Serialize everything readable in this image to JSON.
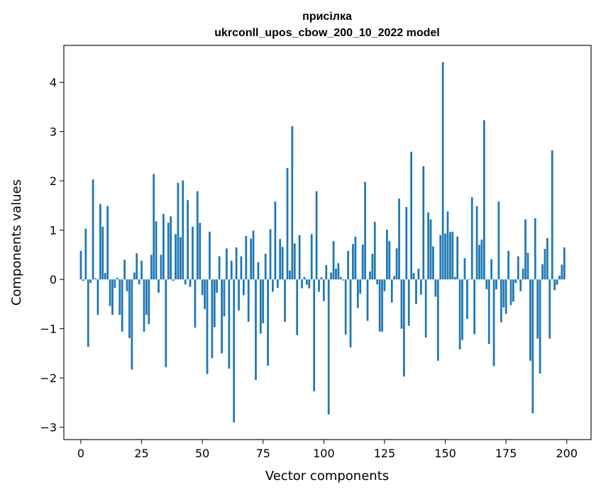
{
  "chart_data": {
    "type": "bar",
    "title": "присілка\nukrconll_upos_cbow_200_10_2022 model",
    "title_lines": [
      "присілка",
      "ukrconll_upos_cbow_200_10_2022 model"
    ],
    "xlabel": "Vector components",
    "ylabel": "Components values",
    "xlim": [
      -7,
      210
    ],
    "ylim": [
      -3.25,
      4.75
    ],
    "xticks": [
      0,
      25,
      50,
      75,
      100,
      125,
      150,
      175,
      200
    ],
    "xtick_labels": [
      "0",
      "25",
      "50",
      "75",
      "100",
      "125",
      "150",
      "175",
      "200"
    ],
    "yticks": [
      -3,
      -2,
      -1,
      0,
      1,
      2,
      3,
      4
    ],
    "ytick_labels": [
      "−3",
      "−2",
      "−1",
      "0",
      "1",
      "2",
      "3",
      "4"
    ],
    "grid": false,
    "bar_color": "#1f77b4",
    "x": [
      0,
      1,
      2,
      3,
      4,
      5,
      6,
      7,
      8,
      9,
      10,
      11,
      12,
      13,
      14,
      15,
      16,
      17,
      18,
      19,
      20,
      21,
      22,
      23,
      24,
      25,
      26,
      27,
      28,
      29,
      30,
      31,
      32,
      33,
      34,
      35,
      36,
      37,
      38,
      39,
      40,
      41,
      42,
      43,
      44,
      45,
      46,
      47,
      48,
      49,
      50,
      51,
      52,
      53,
      54,
      55,
      56,
      57,
      58,
      59,
      60,
      61,
      62,
      63,
      64,
      65,
      66,
      67,
      68,
      69,
      70,
      71,
      72,
      73,
      74,
      75,
      76,
      77,
      78,
      79,
      80,
      81,
      82,
      83,
      84,
      85,
      86,
      87,
      88,
      89,
      90,
      91,
      92,
      93,
      94,
      95,
      96,
      97,
      98,
      99,
      100,
      101,
      102,
      103,
      104,
      105,
      106,
      107,
      108,
      109,
      110,
      111,
      112,
      113,
      114,
      115,
      116,
      117,
      118,
      119,
      120,
      121,
      122,
      123,
      124,
      125,
      126,
      127,
      128,
      129,
      130,
      131,
      132,
      133,
      134,
      135,
      136,
      137,
      138,
      139,
      140,
      141,
      142,
      143,
      144,
      145,
      146,
      147,
      148,
      149,
      150,
      151,
      152,
      153,
      154,
      155,
      156,
      157,
      158,
      159,
      160,
      161,
      162,
      163,
      164,
      165,
      166,
      167,
      168,
      169,
      170,
      171,
      172,
      173,
      174,
      175,
      176,
      177,
      178,
      179,
      180,
      181,
      182,
      183,
      184,
      185,
      186,
      187,
      188,
      189,
      190,
      191,
      192,
      193,
      194,
      195,
      196,
      197,
      198,
      199
    ],
    "values": [
      0.58,
      -0.03,
      1.03,
      -1.37,
      -0.07,
      2.03,
      0.02,
      -0.72,
      1.53,
      1.07,
      0.13,
      1.49,
      -0.54,
      -0.72,
      -0.17,
      0.03,
      -0.72,
      -1.06,
      0.4,
      -0.24,
      -1.19,
      -1.83,
      0.14,
      0.53,
      -0.1,
      0.38,
      -1.06,
      -0.72,
      -0.91,
      0.5,
      2.14,
      1.18,
      -0.27,
      0.5,
      1.33,
      -1.78,
      1.15,
      1.28,
      -0.03,
      0.92,
      1.96,
      0.86,
      2.01,
      -0.1,
      1.61,
      -0.15,
      1.07,
      -0.98,
      1.79,
      1.15,
      -0.32,
      -0.6,
      -1.92,
      0.97,
      -1.6,
      -0.97,
      -0.27,
      0.47,
      -1.5,
      -0.75,
      0.63,
      -1.81,
      0.38,
      -2.9,
      0.65,
      -0.63,
      0.47,
      -0.32,
      0.88,
      -0.86,
      0.83,
      0.99,
      -2.04,
      0.35,
      -1.1,
      -0.89,
      0.52,
      -1.75,
      1.02,
      -0.25,
      1.58,
      -0.17,
      0.82,
      0.66,
      -0.86,
      2.26,
      0.18,
      3.11,
      0.73,
      -1.13,
      0.9,
      -0.18,
      0.05,
      -0.11,
      -0.18,
      0.92,
      -2.27,
      1.79,
      -0.25,
      0.04,
      -0.44,
      0.29,
      -2.74,
      0.14,
      0.78,
      0.22,
      0.33,
      0.05,
      -0.02,
      -1.12,
      0.58,
      -1.38,
      0.72,
      0.87,
      -0.58,
      -0.29,
      0.71,
      1.98,
      -0.84,
      0.16,
      0.52,
      1.17,
      -0.1,
      -1.06,
      -1.06,
      -0.24,
      1.01,
      0.78,
      -0.47,
      0.07,
      0.63,
      1.64,
      -1.0,
      -1.97,
      1.47,
      -0.94,
      2.59,
      0.13,
      -0.5,
      0.22,
      -0.31,
      2.3,
      -1.18,
      1.36,
      1.22,
      0.67,
      -0.35,
      -1.65,
      0.9,
      4.41,
      0.93,
      1.38,
      0.96,
      0.97,
      0.05,
      0.87,
      -1.42,
      -1.23,
      0.43,
      -0.8,
      0.01,
      1.67,
      -1.11,
      1.49,
      0.7,
      0.81,
      3.23,
      -0.2,
      -1.31,
      0.41,
      -1.76,
      -0.2,
      1.58,
      -0.87,
      -0.57,
      -0.7,
      0.58,
      -0.52,
      -0.45,
      -0.07,
      0.47,
      -0.24,
      0.22,
      1.22,
      0.54,
      -1.65,
      -2.72,
      1.24,
      -1.2,
      -1.91,
      0.31,
      0.62,
      0.84,
      -1.2,
      2.62,
      -0.22,
      -0.11,
      0.08,
      0.3,
      0.65
    ]
  }
}
